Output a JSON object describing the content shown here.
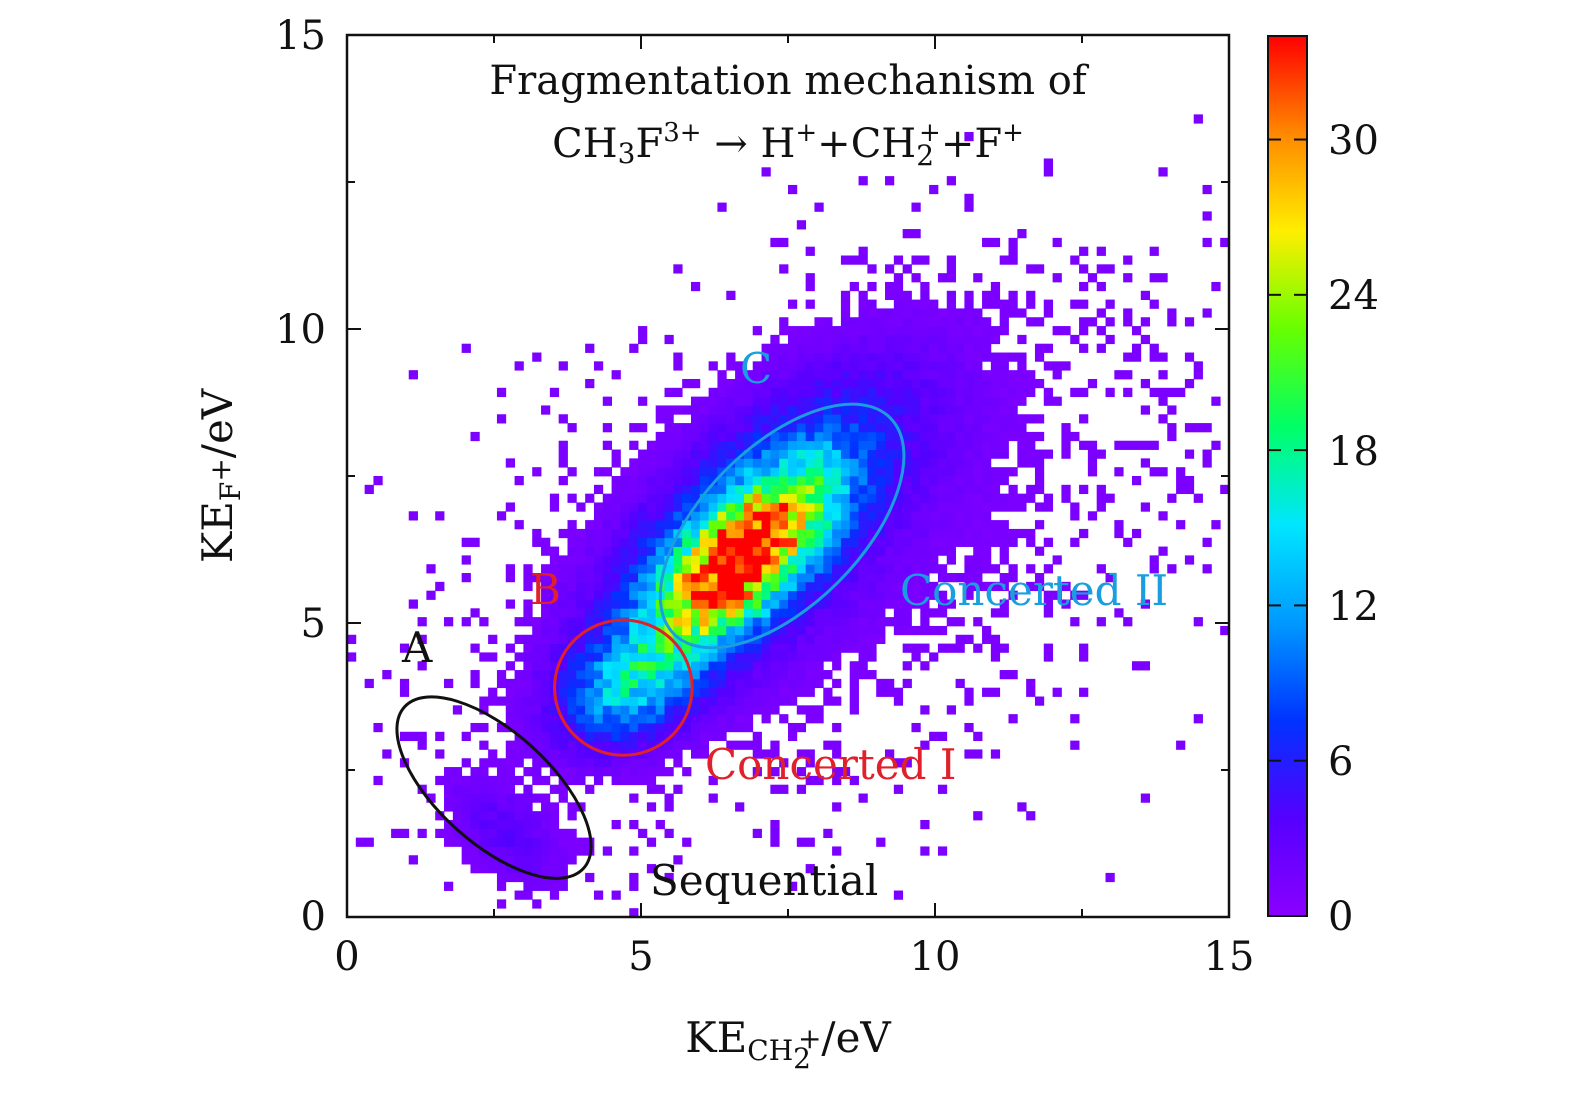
{
  "chart_data": {
    "type": "heatmap",
    "title_lines": {
      "line1": "Fragmentation mechanism of",
      "line2": {
        "p1": "CH",
        "p1_sub": "3",
        "p2": "F",
        "p2_sup": "3+",
        "arrow": " → ",
        "p3": "H",
        "p3_sup": "+",
        "plus1": "+",
        "p4": "CH",
        "p4_sub": "2",
        "p4_sup": "+",
        "plus2": "+",
        "p5": "F",
        "p5_sup": "+"
      }
    },
    "xlabel": {
      "main": "KE",
      "sub": "CH",
      "sub_sub": "2",
      "sub_sup": "+",
      "unit": "/eV"
    },
    "ylabel": {
      "main": "KE",
      "sub": "F",
      "sub_sup": "+",
      "unit": "/eV"
    },
    "xlim": [
      0,
      15
    ],
    "ylim": [
      0,
      15
    ],
    "x_ticks": [
      "0",
      "5",
      "10",
      "15"
    ],
    "y_ticks": [
      "0",
      "5",
      "10",
      "15"
    ],
    "colorbar": {
      "range": [
        0,
        34
      ],
      "ticks": [
        "0",
        "6",
        "12",
        "18",
        "24",
        "30"
      ],
      "colors": [
        "#8a00ff",
        "#5500ff",
        "#0033ff",
        "#0099ff",
        "#00e6ff",
        "#00ff66",
        "#66ff00",
        "#ffee00",
        "#ff8800",
        "#ff0000"
      ]
    },
    "bin_size": 0.15,
    "clusters": [
      {
        "name": "A",
        "label": "Sequential",
        "color": "#111111",
        "cx": 2.5,
        "cy": 2.2,
        "rx": 2.05,
        "ry": 0.95,
        "angle_deg": -42
      },
      {
        "name": "B",
        "label": "Concerted I",
        "color": "#e0202a",
        "cx": 4.7,
        "cy": 3.9,
        "rx": 1.17,
        "ry": 1.15,
        "angle_deg": 0
      },
      {
        "name": "C",
        "label": "Concerted II",
        "color": "#1a9ee0",
        "cx": 7.4,
        "cy": 6.65,
        "rx": 2.6,
        "ry": 1.35,
        "angle_deg": 45
      }
    ],
    "annotations": {
      "A": "A",
      "B": "B",
      "C": "C",
      "sequential": "Sequential",
      "concerted_1": "Concerted I",
      "concerted_2": "Concerted II"
    }
  }
}
